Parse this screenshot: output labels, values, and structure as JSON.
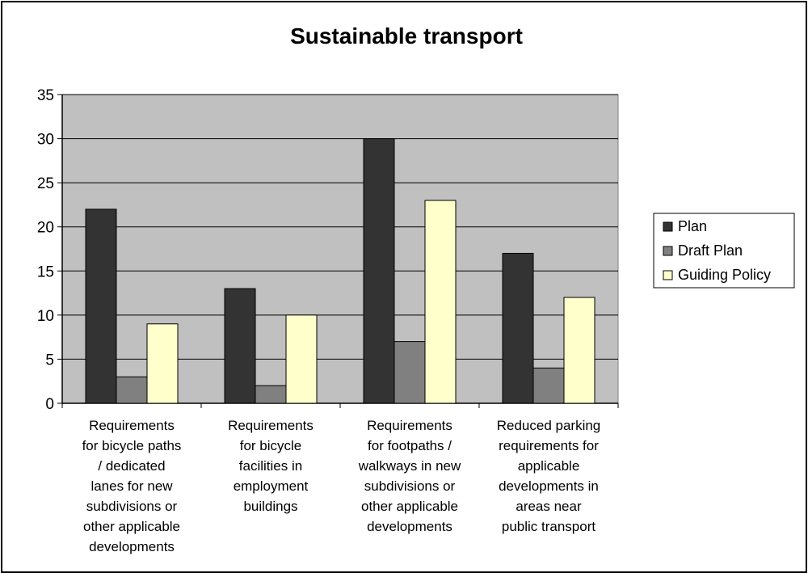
{
  "chart_data": {
    "type": "bar",
    "title": "Sustainable transport",
    "xlabel": "",
    "ylabel": "",
    "ylim": [
      0,
      35
    ],
    "yticks": [
      0,
      5,
      10,
      15,
      20,
      25,
      30,
      35
    ],
    "grid": true,
    "legend_position": "right",
    "categories": [
      [
        "Requirements",
        "for bicycle paths",
        "/ dedicated",
        "lanes for new",
        "subdivisions or",
        "other applicable",
        "developments"
      ],
      [
        "Requirements",
        "for bicycle",
        "facilities in",
        "employment",
        "buildings"
      ],
      [
        "Requirements",
        "for footpaths /",
        "walkways in new",
        "subdivisions or",
        "other applicable",
        "developments"
      ],
      [
        "Reduced parking",
        "requirements for",
        "applicable",
        "developments in",
        "areas near",
        "public transport"
      ]
    ],
    "series": [
      {
        "name": "Plan",
        "color": "#333333",
        "values": [
          22,
          13,
          30,
          17
        ]
      },
      {
        "name": "Draft Plan",
        "color": "#808080",
        "values": [
          3,
          2,
          7,
          4
        ]
      },
      {
        "name": "Guiding Policy",
        "color": "#ffffcc",
        "values": [
          9,
          10,
          23,
          12
        ]
      }
    ],
    "plot_background": "#c0c0c0"
  }
}
